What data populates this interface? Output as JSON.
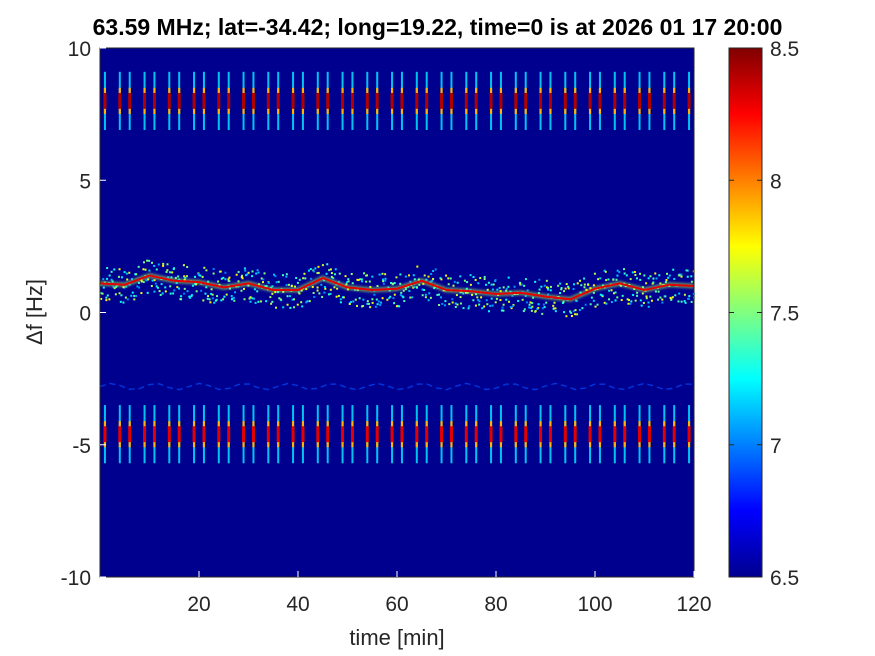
{
  "chart_data": {
    "type": "heatmap",
    "title": "63.59 MHz;  lat=-34.42; long=19.22, time=0 is at 2026 01 17 20:00",
    "xlabel": "time [min]",
    "ylabel": "Δf [Hz]",
    "xlim": [
      0,
      120
    ],
    "ylim": [
      -10,
      10
    ],
    "xticks": [
      20,
      40,
      60,
      80,
      100,
      120
    ],
    "yticks": [
      -10,
      -5,
      0,
      5,
      10
    ],
    "colorbar": {
      "clim": [
        6.5,
        8.5
      ],
      "ticks": [
        6.5,
        7,
        7.5,
        8,
        8.5
      ],
      "colormap": "jet"
    },
    "background_level": 6.5,
    "carrier_trace": [
      {
        "t": 0,
        "df": 1.1
      },
      {
        "t": 5,
        "df": 1.05
      },
      {
        "t": 10,
        "df": 1.4
      },
      {
        "t": 15,
        "df": 1.2
      },
      {
        "t": 20,
        "df": 1.15
      },
      {
        "t": 25,
        "df": 0.95
      },
      {
        "t": 30,
        "df": 1.1
      },
      {
        "t": 35,
        "df": 0.85
      },
      {
        "t": 40,
        "df": 0.85
      },
      {
        "t": 45,
        "df": 1.3
      },
      {
        "t": 50,
        "df": 0.95
      },
      {
        "t": 55,
        "df": 0.85
      },
      {
        "t": 60,
        "df": 0.9
      },
      {
        "t": 65,
        "df": 1.2
      },
      {
        "t": 70,
        "df": 0.85
      },
      {
        "t": 75,
        "df": 0.8
      },
      {
        "t": 80,
        "df": 0.7
      },
      {
        "t": 85,
        "df": 0.75
      },
      {
        "t": 90,
        "df": 0.6
      },
      {
        "t": 95,
        "df": 0.5
      },
      {
        "t": 100,
        "df": 0.9
      },
      {
        "t": 105,
        "df": 1.1
      },
      {
        "t": 110,
        "df": 0.85
      },
      {
        "t": 115,
        "df": 1.05
      },
      {
        "t": 120,
        "df": 1.0
      }
    ],
    "pulse_bands": [
      {
        "df_center": 8.0,
        "df_half_width": 1.1,
        "level": 8.4
      },
      {
        "df_center": -4.6,
        "df_half_width": 1.1,
        "level": 8.3
      }
    ],
    "pulse_times": [
      1,
      4,
      6,
      9,
      11,
      14,
      16,
      19,
      21,
      24,
      26,
      29,
      31,
      34,
      36,
      39,
      41,
      44,
      46,
      49,
      51,
      54,
      56,
      59,
      61,
      64,
      66,
      69,
      71,
      74,
      76,
      79,
      81,
      84,
      86,
      89,
      91,
      94,
      96,
      99,
      101,
      104,
      106,
      109,
      111,
      114,
      116,
      119
    ],
    "faint_trace": {
      "df": -2.8,
      "level": 6.9
    }
  }
}
